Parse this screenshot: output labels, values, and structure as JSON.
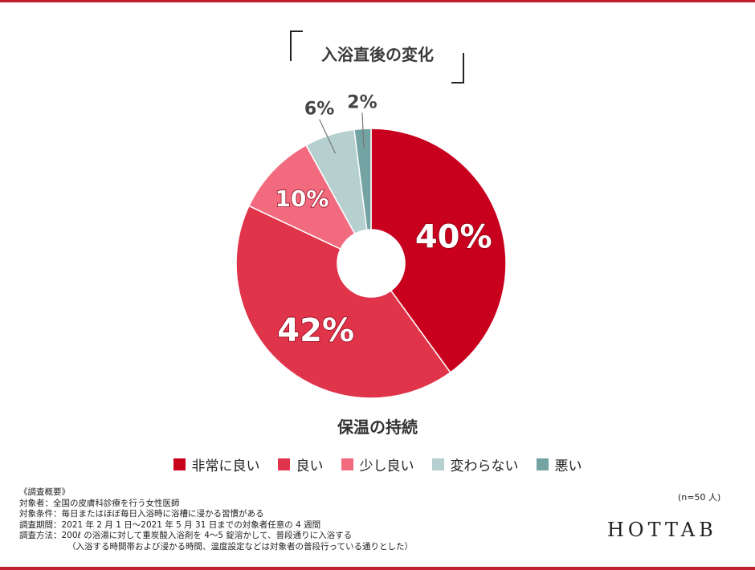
{
  "chart_data": {
    "type": "pie",
    "title": "入浴直後の変化",
    "subtitle": "保温の持続",
    "categories": [
      "非常に良い",
      "良い",
      "少し良い",
      "変わらない",
      "悪い"
    ],
    "values": [
      40,
      42,
      10,
      6,
      2
    ],
    "value_labels": [
      "40%",
      "42%",
      "10%",
      "6%",
      "2%"
    ],
    "colors": [
      "#c8001e",
      "#e0344a",
      "#f26a7e",
      "#b6d0cf",
      "#74a3a3"
    ],
    "legend_position": "bottom"
  },
  "survey": {
    "heading": "《調査概要》",
    "lines": [
      "対象者：全国の皮膚科診療を行う女性医師",
      "対象条件：毎日またはほぼ毎日入浴時に浴槽に浸かる習慣がある",
      "調査期間：2021 年 2 月 1 日〜2021 年 5 月 31 日までの対象者任意の 4 週間",
      "調査方法：200ℓ の浴湯に対して重炭酸入浴剤を 4〜5 錠溶かして、普段通りに入浴する",
      "（入浴する時間帯および浸かる時間、温度設定などは対象者の普段行っている通りとした）"
    ]
  },
  "sample_size": "(n=50 人)",
  "brand": "HOTTAB"
}
